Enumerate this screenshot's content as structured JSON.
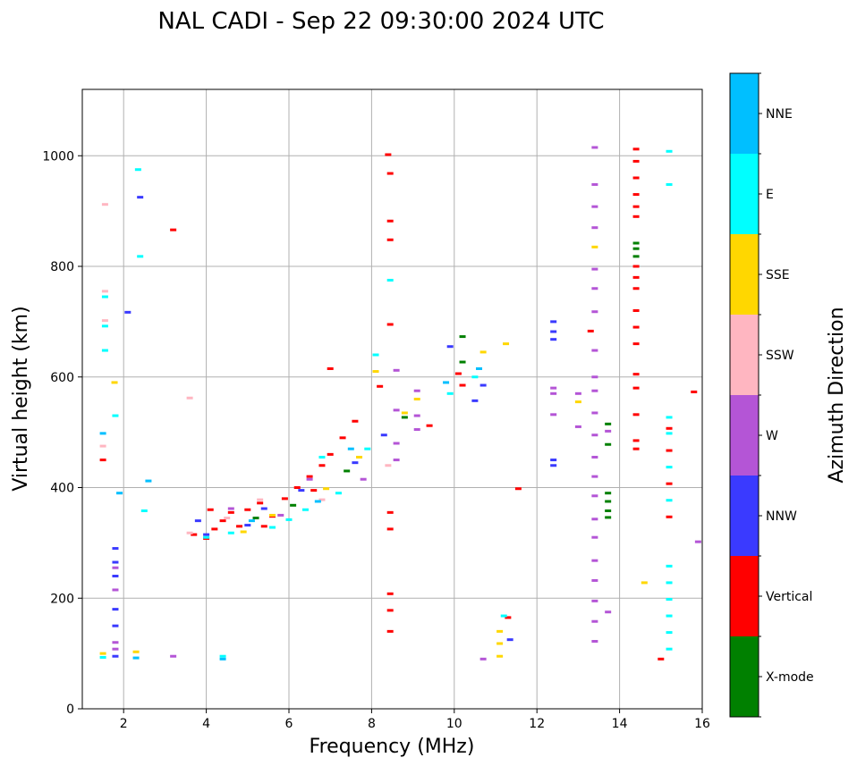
{
  "chart_data": {
    "type": "scatter",
    "title": "NAL CADI - Sep 22 09:30:00 2024 UTC",
    "xlabel": "Frequency (MHz)",
    "ylabel": "Virtual height (km)",
    "xlim": [
      1,
      16
    ],
    "ylim": [
      0,
      1120
    ],
    "xticks": [
      2,
      4,
      6,
      8,
      10,
      12,
      14,
      16
    ],
    "yticks": [
      0,
      200,
      400,
      600,
      800,
      1000
    ],
    "grid": true,
    "colorbar": {
      "label": "Azimuth Direction",
      "categories": [
        {
          "name": "X-mode",
          "color": "#008000"
        },
        {
          "name": "Vertical",
          "color": "#ff0000"
        },
        {
          "name": "NNW",
          "color": "#3a3aff"
        },
        {
          "name": "W",
          "color": "#b455d6"
        },
        {
          "name": "SSW",
          "color": "#ffb6c1"
        },
        {
          "name": "SSE",
          "color": "#ffd700"
        },
        {
          "name": "E",
          "color": "#00ffff"
        },
        {
          "name": "NNE",
          "color": "#00bfff"
        }
      ]
    },
    "series": [
      {
        "name": "X-mode",
        "color": "#008000",
        "points": [
          [
            8.8,
            527
          ],
          [
            10.2,
            627
          ],
          [
            10.2,
            673
          ],
          [
            13.72,
            390
          ],
          [
            13.72,
            375
          ],
          [
            13.72,
            358
          ],
          [
            13.72,
            346
          ],
          [
            13.72,
            515
          ],
          [
            13.72,
            478
          ],
          [
            14.4,
            842
          ],
          [
            14.4,
            832
          ],
          [
            14.4,
            818
          ],
          [
            6.1,
            368
          ],
          [
            7.4,
            430
          ],
          [
            5.2,
            345
          ]
        ]
      },
      {
        "name": "Vertical",
        "color": "#ff0000",
        "points": [
          [
            4.0,
            308
          ],
          [
            4.2,
            325
          ],
          [
            4.4,
            340
          ],
          [
            4.6,
            355
          ],
          [
            4.8,
            330
          ],
          [
            5.0,
            360
          ],
          [
            5.3,
            372
          ],
          [
            5.6,
            348
          ],
          [
            5.9,
            380
          ],
          [
            6.2,
            400
          ],
          [
            6.5,
            420
          ],
          [
            6.8,
            440
          ],
          [
            7.0,
            460
          ],
          [
            7.3,
            490
          ],
          [
            3.7,
            315
          ],
          [
            4.1,
            360
          ],
          [
            5.4,
            330
          ],
          [
            6.6,
            395
          ],
          [
            7.6,
            520
          ],
          [
            8.4,
            1002
          ],
          [
            8.45,
            968
          ],
          [
            8.45,
            882
          ],
          [
            8.45,
            848
          ],
          [
            8.45,
            695
          ],
          [
            8.45,
            355
          ],
          [
            8.45,
            325
          ],
          [
            8.45,
            208
          ],
          [
            8.45,
            178
          ],
          [
            8.45,
            140
          ],
          [
            7.0,
            615
          ],
          [
            8.2,
            583
          ],
          [
            9.4,
            512
          ],
          [
            10.2,
            585
          ],
          [
            10.1,
            606
          ],
          [
            11.3,
            165
          ],
          [
            11.55,
            398
          ],
          [
            13.3,
            683
          ],
          [
            3.2,
            866
          ],
          [
            14.4,
            1012
          ],
          [
            14.4,
            990
          ],
          [
            14.4,
            960
          ],
          [
            14.4,
            930
          ],
          [
            14.4,
            908
          ],
          [
            14.4,
            890
          ],
          [
            14.4,
            800
          ],
          [
            14.4,
            780
          ],
          [
            14.4,
            760
          ],
          [
            14.4,
            720
          ],
          [
            14.4,
            690
          ],
          [
            14.4,
            660
          ],
          [
            14.4,
            605
          ],
          [
            14.4,
            580
          ],
          [
            14.4,
            532
          ],
          [
            14.4,
            485
          ],
          [
            14.4,
            470
          ],
          [
            15.2,
            507
          ],
          [
            15.2,
            467
          ],
          [
            15.2,
            407
          ],
          [
            15.2,
            347
          ],
          [
            15.0,
            90
          ],
          [
            15.8,
            573
          ],
          [
            1.5,
            450
          ]
        ]
      },
      {
        "name": "NNW",
        "color": "#3a3aff",
        "points": [
          [
            1.8,
            290
          ],
          [
            1.8,
            265
          ],
          [
            1.8,
            240
          ],
          [
            1.8,
            180
          ],
          [
            1.8,
            150
          ],
          [
            1.8,
            95
          ],
          [
            2.1,
            717
          ],
          [
            2.4,
            925
          ],
          [
            4.0,
            315
          ],
          [
            5.0,
            332
          ],
          [
            5.4,
            362
          ],
          [
            6.3,
            395
          ],
          [
            7.6,
            445
          ],
          [
            8.3,
            495
          ],
          [
            9.9,
            655
          ],
          [
            10.5,
            557
          ],
          [
            10.7,
            585
          ],
          [
            12.4,
            700
          ],
          [
            12.4,
            682
          ],
          [
            12.4,
            668
          ],
          [
            12.4,
            450
          ],
          [
            12.4,
            440
          ],
          [
            11.35,
            125
          ],
          [
            3.8,
            340
          ]
        ]
      },
      {
        "name": "W",
        "color": "#b455d6",
        "points": [
          [
            1.8,
            255
          ],
          [
            1.8,
            215
          ],
          [
            1.8,
            120
          ],
          [
            1.8,
            108
          ],
          [
            3.2,
            95
          ],
          [
            4.6,
            362
          ],
          [
            5.8,
            350
          ],
          [
            6.5,
            415
          ],
          [
            7.8,
            415
          ],
          [
            8.6,
            612
          ],
          [
            8.6,
            540
          ],
          [
            8.6,
            480
          ],
          [
            8.6,
            450
          ],
          [
            9.1,
            575
          ],
          [
            9.1,
            530
          ],
          [
            9.1,
            505
          ],
          [
            10.7,
            90
          ],
          [
            12.4,
            580
          ],
          [
            12.4,
            570
          ],
          [
            13.0,
            570
          ],
          [
            13.0,
            510
          ],
          [
            13.4,
            1015
          ],
          [
            13.4,
            948
          ],
          [
            13.4,
            908
          ],
          [
            13.4,
            870
          ],
          [
            13.4,
            795
          ],
          [
            13.4,
            760
          ],
          [
            13.4,
            718
          ],
          [
            13.4,
            648
          ],
          [
            13.4,
            600
          ],
          [
            13.4,
            575
          ],
          [
            13.4,
            535
          ],
          [
            13.4,
            495
          ],
          [
            13.4,
            455
          ],
          [
            13.4,
            420
          ],
          [
            13.4,
            385
          ],
          [
            13.4,
            343
          ],
          [
            13.4,
            310
          ],
          [
            13.4,
            268
          ],
          [
            13.4,
            232
          ],
          [
            13.4,
            195
          ],
          [
            13.4,
            158
          ],
          [
            13.4,
            122
          ],
          [
            13.72,
            175
          ],
          [
            15.9,
            302
          ],
          [
            12.4,
            532
          ],
          [
            13.72,
            502
          ]
        ]
      },
      {
        "name": "SSW",
        "color": "#ffb6c1",
        "points": [
          [
            1.55,
            912
          ],
          [
            1.55,
            755
          ],
          [
            1.55,
            702
          ],
          [
            3.6,
            318
          ],
          [
            4.5,
            345
          ],
          [
            5.3,
            378
          ],
          [
            6.8,
            378
          ],
          [
            8.4,
            440
          ],
          [
            3.6,
            562
          ],
          [
            1.5,
            475
          ]
        ]
      },
      {
        "name": "SSE",
        "color": "#ffd700",
        "points": [
          [
            1.5,
            100
          ],
          [
            2.3,
            103
          ],
          [
            8.1,
            610
          ],
          [
            8.8,
            535
          ],
          [
            9.1,
            560
          ],
          [
            13.0,
            555
          ],
          [
            11.25,
            660
          ],
          [
            11.1,
            140
          ],
          [
            11.1,
            118
          ],
          [
            11.1,
            95
          ],
          [
            13.4,
            835
          ],
          [
            14.6,
            228
          ],
          [
            1.78,
            590
          ],
          [
            5.6,
            350
          ],
          [
            6.9,
            398
          ],
          [
            4.9,
            320
          ],
          [
            7.7,
            455
          ],
          [
            10.7,
            645
          ]
        ]
      },
      {
        "name": "E",
        "color": "#00ffff",
        "points": [
          [
            1.55,
            745
          ],
          [
            1.55,
            648
          ],
          [
            1.55,
            692
          ],
          [
            1.8,
            530
          ],
          [
            2.5,
            358
          ],
          [
            2.35,
            975
          ],
          [
            2.4,
            818
          ],
          [
            4.4,
            95
          ],
          [
            4.0,
            310
          ],
          [
            4.6,
            318
          ],
          [
            5.6,
            328
          ],
          [
            6.0,
            342
          ],
          [
            6.4,
            360
          ],
          [
            7.2,
            390
          ],
          [
            7.9,
            470
          ],
          [
            8.1,
            640
          ],
          [
            8.45,
            775
          ],
          [
            9.9,
            570
          ],
          [
            10.5,
            600
          ],
          [
            11.2,
            168
          ],
          [
            15.2,
            1008
          ],
          [
            15.2,
            948
          ],
          [
            15.2,
            527
          ],
          [
            15.2,
            498
          ],
          [
            15.2,
            437
          ],
          [
            15.2,
            377
          ],
          [
            15.2,
            258
          ],
          [
            15.2,
            228
          ],
          [
            15.2,
            198
          ],
          [
            15.2,
            168
          ],
          [
            15.2,
            138
          ],
          [
            15.2,
            108
          ],
          [
            6.8,
            455
          ],
          [
            1.5,
            93
          ]
        ]
      },
      {
        "name": "NNE",
        "color": "#00bfff",
        "points": [
          [
            1.5,
            498
          ],
          [
            2.3,
            92
          ],
          [
            4.4,
            90
          ],
          [
            1.9,
            390
          ],
          [
            2.6,
            412
          ],
          [
            5.1,
            340
          ],
          [
            6.7,
            375
          ],
          [
            7.5,
            470
          ],
          [
            9.8,
            590
          ],
          [
            10.6,
            615
          ]
        ]
      }
    ]
  }
}
